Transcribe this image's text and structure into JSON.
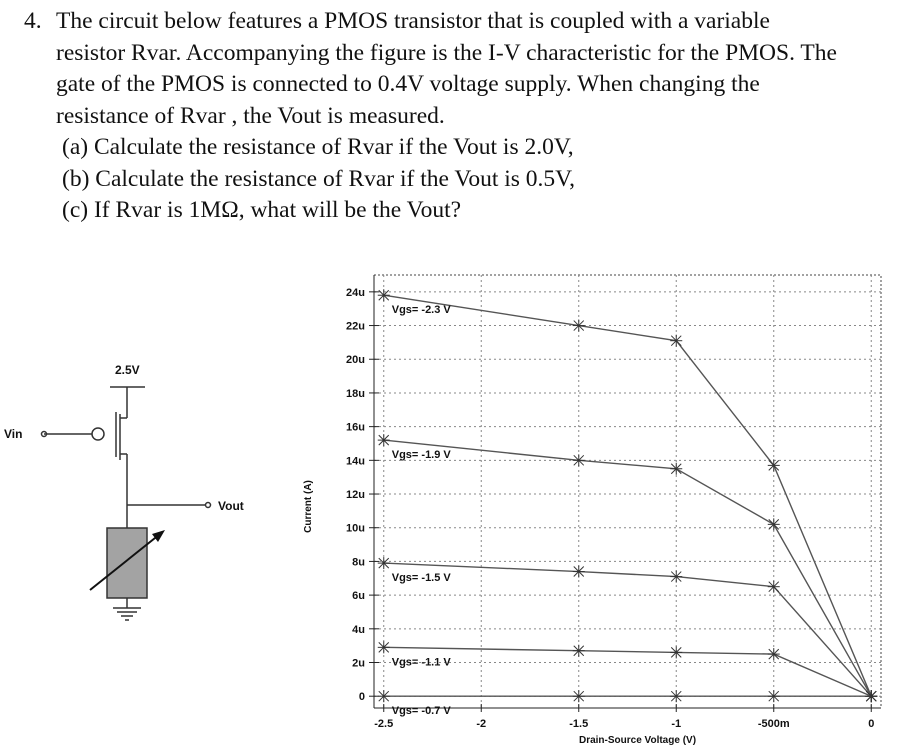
{
  "problem": {
    "number": "4.",
    "lines": [
      "The circuit below features a PMOS transistor that is coupled with a variable",
      "resistor Rvar. Accompanying the figure is the I-V characteristic for the PMOS. The",
      "gate of the PMOS is connected to 0.4V voltage supply. When changing the",
      "resistance of Rvar , the Vout is measured."
    ],
    "parts": [
      "(a) Calculate the resistance of Rvar  if the Vout is  2.0V,",
      "(b) Calculate the resistance of Rvar  if the Vout is  0.5V,",
      "(c) If Rvar is 1MΩ, what will be the Vout?"
    ]
  },
  "circuit": {
    "supply_label": "2.5V",
    "input_label": "Vin",
    "output_label": "Vout"
  },
  "chart_data": {
    "type": "line",
    "xlabel": "Drain-Source Voltage (V)",
    "ylabel": "Current (A)",
    "x_tick_labels": [
      "-2.5",
      "-2",
      "-1.5",
      "-1",
      "-500m",
      "0"
    ],
    "x_ticks": [
      -2.5,
      -2,
      -1.5,
      -1,
      -0.5,
      0
    ],
    "y_tick_labels": [
      "0",
      "2u",
      "4u",
      "6u",
      "8u",
      "10u",
      "12u",
      "14u",
      "16u",
      "18u",
      "20u",
      "22u",
      "24u"
    ],
    "y_ticks": [
      0,
      2,
      4,
      6,
      8,
      10,
      12,
      14,
      16,
      18,
      20,
      22,
      24
    ],
    "xlim": [
      -2.55,
      0.05
    ],
    "ylim": [
      -0.7,
      25
    ],
    "grid": true,
    "series": [
      {
        "name": "Vgs= -2.3 V",
        "x": [
          -2.5,
          -1.5,
          -1.0,
          -0.5,
          0.0
        ],
        "y": [
          23.8,
          22.0,
          21.1,
          13.7,
          0.0
        ]
      },
      {
        "name": "Vgs= -1.9 V",
        "x": [
          -2.5,
          -1.5,
          -1.0,
          -0.5,
          0.0
        ],
        "y": [
          15.2,
          14.0,
          13.5,
          10.2,
          0.0
        ]
      },
      {
        "name": "Vgs= -1.5 V",
        "x": [
          -2.5,
          -1.5,
          -1.0,
          -0.5,
          0.0
        ],
        "y": [
          7.9,
          7.4,
          7.1,
          6.5,
          0.0
        ]
      },
      {
        "name": "Vgs= -1.1 V",
        "x": [
          -2.5,
          -1.5,
          -1.0,
          -0.5,
          0.0
        ],
        "y": [
          2.9,
          2.7,
          2.6,
          2.5,
          0.0
        ]
      },
      {
        "name": "Vgs= -0.7 V",
        "x": [
          -2.5,
          -1.5,
          -1.0,
          -0.5,
          0.0
        ],
        "y": [
          0.0,
          0.0,
          0.0,
          0.0,
          0.0
        ]
      }
    ]
  }
}
